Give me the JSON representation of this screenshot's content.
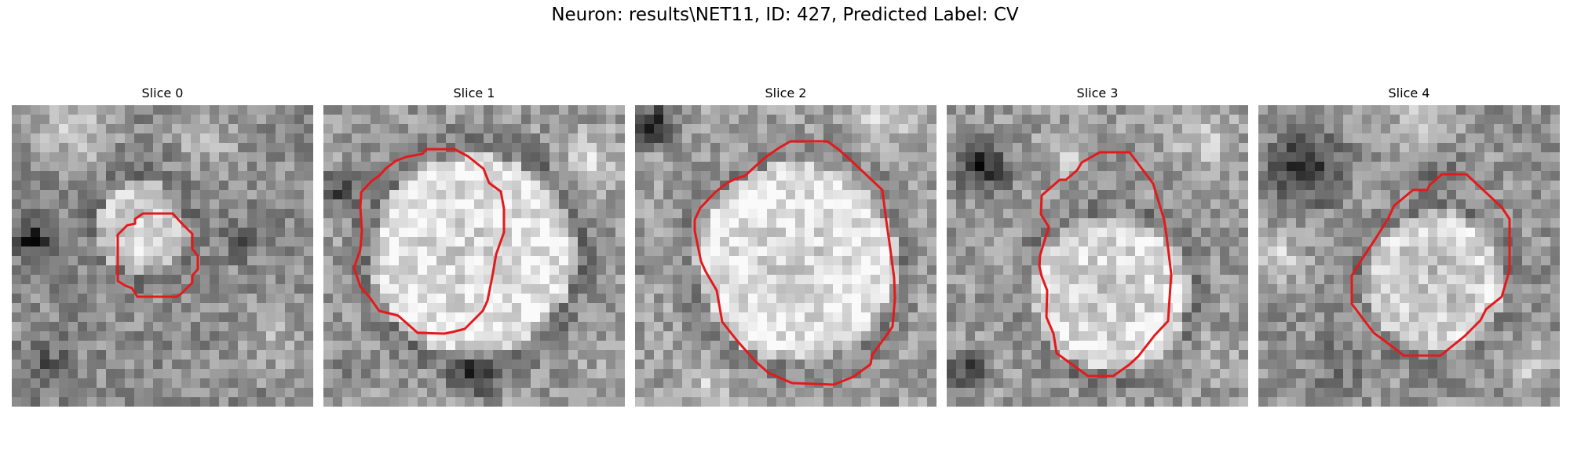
{
  "figure": {
    "title": "Neuron: results\\NET11, ID: 427, Predicted Label: CV"
  },
  "panels": [
    {
      "title": "Slice 0"
    },
    {
      "title": "Slice 1"
    },
    {
      "title": "Slice 2"
    },
    {
      "title": "Slice 3"
    },
    {
      "title": "Slice 4"
    }
  ],
  "colors": {
    "contour": "#e31a1c",
    "background": "#ffffff"
  }
}
